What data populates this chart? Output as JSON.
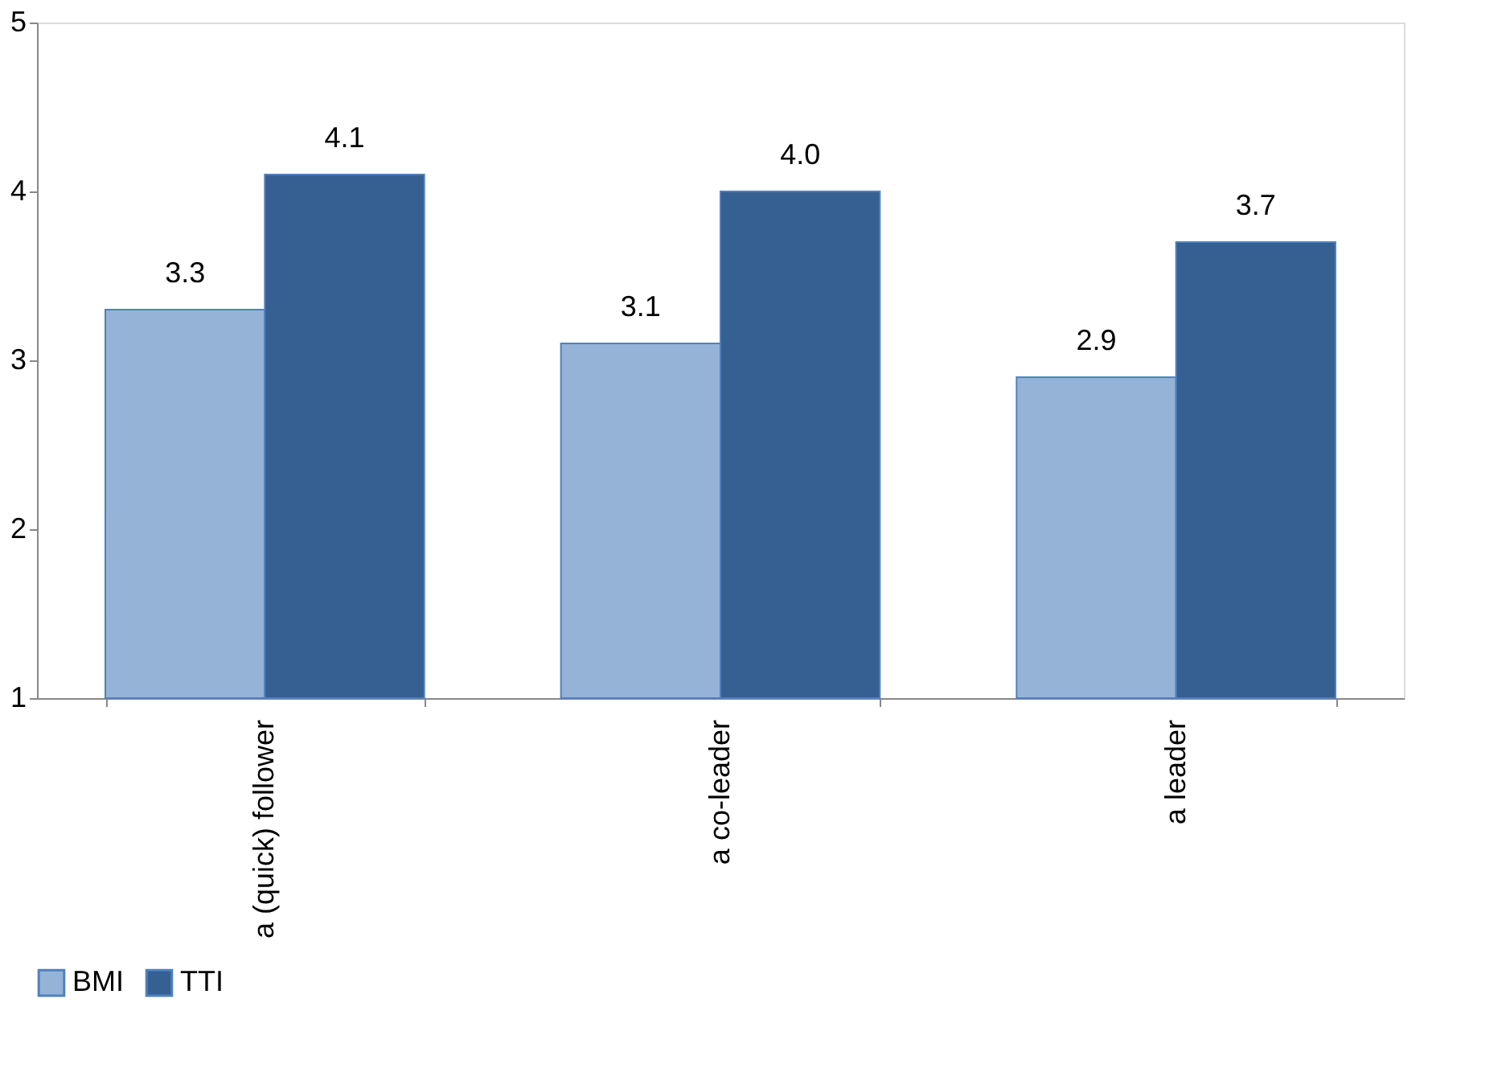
{
  "chart_data": {
    "type": "bar",
    "categories": [
      "a (quick) follower",
      "a co-leader",
      "a leader"
    ],
    "series": [
      {
        "name": "BMI",
        "color": "#95b3d7",
        "values": [
          3.3,
          3.1,
          2.9
        ],
        "value_labels": [
          "3.3",
          "3.1",
          "2.9"
        ]
      },
      {
        "name": "TTI",
        "color": "#366092",
        "values": [
          4.1,
          4.0,
          3.7
        ],
        "value_labels": [
          "4.1",
          "4.0",
          "3.7"
        ]
      }
    ],
    "ylim": [
      1,
      5
    ],
    "yticks": [
      1,
      2,
      3,
      4,
      5
    ],
    "grid": false,
    "legend": "bottom"
  }
}
